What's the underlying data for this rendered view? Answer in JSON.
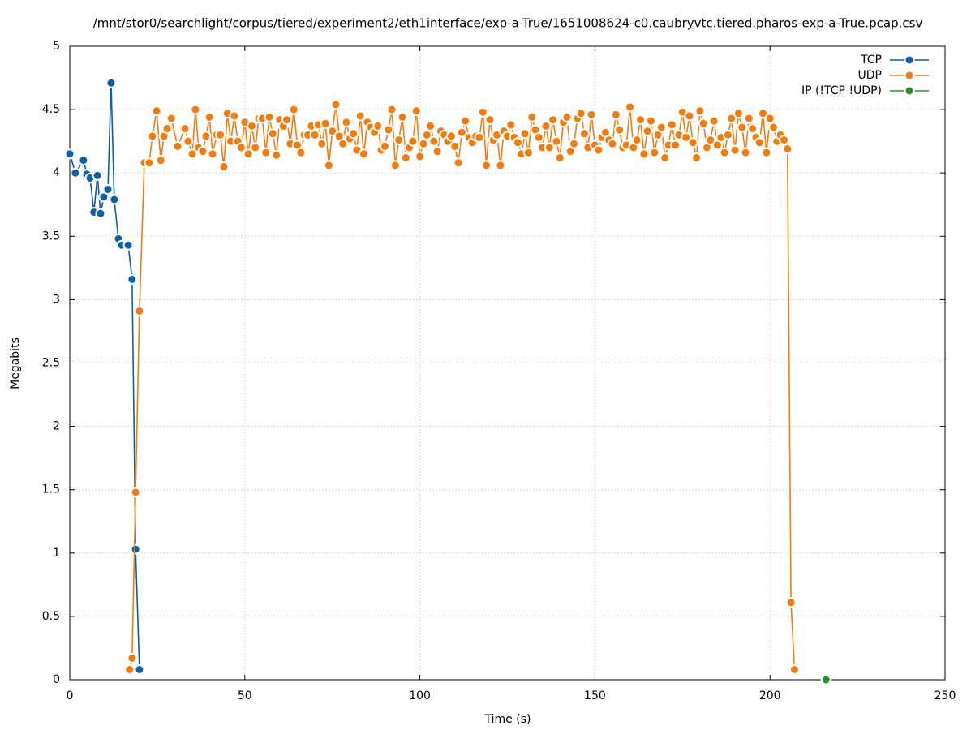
{
  "chart_data": {
    "type": "line",
    "title": "/mnt/stor0/searchlight/corpus/tiered/experiment2/eth1interface/exp-a-True/1651008624-c0.caubryvtc.tiered.pharos-exp-a-True.pcap.csv",
    "xlabel": "Time (s)",
    "ylabel": "Megabits",
    "xlim": [
      0,
      250
    ],
    "ylim": [
      0,
      5
    ],
    "xticks": [
      0,
      50,
      100,
      150,
      200,
      250
    ],
    "yticks": [
      0,
      0.5,
      1,
      1.5,
      2,
      2.5,
      3,
      3.5,
      4,
      4.5,
      5
    ],
    "grid": true,
    "legend": "top-right",
    "series": [
      {
        "name": "TCP",
        "color": "#0a5fa8",
        "x": [
          0,
          1.6,
          3.9,
          4.9,
          5.8,
          6.9,
          7.9,
          8.8,
          9.7,
          10.9,
          11.8,
          12.7,
          13.9,
          14.8,
          16.7,
          17.8,
          18.8,
          19.9
        ],
        "values": [
          4.15,
          4.0,
          4.1,
          3.99,
          3.96,
          3.69,
          3.98,
          3.68,
          3.81,
          3.87,
          4.71,
          3.79,
          3.48,
          3.43,
          3.43,
          3.16,
          1.03,
          0.08
        ]
      },
      {
        "name": "UDP",
        "color": "#f47c0f",
        "x": [
          17.1,
          17.8,
          18.8,
          19.9,
          21.3,
          22.7,
          23.6,
          24.8,
          26,
          26.9,
          27.8,
          29,
          30.8,
          32.9,
          33.8,
          35,
          35.9,
          36.8,
          38,
          38.9,
          39.9,
          40.8,
          42,
          43,
          44,
          45,
          46,
          47,
          48,
          49,
          50,
          51,
          52,
          53,
          54,
          55,
          56,
          57,
          58,
          59,
          60,
          61,
          62,
          63,
          64,
          65,
          66,
          67,
          68,
          69,
          70,
          71,
          72,
          73,
          74,
          75,
          76,
          77,
          78,
          79,
          80,
          81,
          82,
          83,
          84,
          85,
          86,
          87,
          88,
          89,
          90,
          91,
          92,
          93,
          94,
          95,
          96,
          97,
          98,
          99,
          100,
          101,
          102,
          103,
          104,
          105,
          106,
          107,
          108,
          109,
          110,
          111,
          112,
          113,
          114,
          115,
          116,
          117,
          118,
          119,
          120,
          121,
          122,
          123,
          124,
          125,
          126,
          127,
          128,
          129,
          130,
          131,
          132,
          133,
          134,
          135,
          136,
          137,
          138,
          139,
          140,
          141,
          142,
          143,
          144,
          145,
          146,
          147,
          148,
          149,
          150,
          151,
          152,
          153,
          154,
          155,
          156,
          157,
          158,
          159,
          160,
          161,
          162,
          163,
          164,
          165,
          166,
          167,
          168,
          169,
          170,
          171,
          172,
          173,
          174,
          175,
          176,
          177,
          178,
          179,
          180,
          181,
          182,
          183,
          184,
          185,
          186,
          187,
          188,
          189,
          190,
          191,
          192,
          193,
          194,
          195,
          196,
          197,
          198,
          199,
          200,
          201,
          202,
          203,
          204,
          205,
          206,
          207
        ],
        "values": [
          0.08,
          0.17,
          1.48,
          2.91,
          4.08,
          4.08,
          4.29,
          4.49,
          4.1,
          4.29,
          4.35,
          4.43,
          4.21,
          4.35,
          4.25,
          4.15,
          4.5,
          4.2,
          4.17,
          4.29,
          4.44,
          4.15,
          4.3,
          4.3,
          4.05,
          4.47,
          4.25,
          4.45,
          4.25,
          4.2,
          4.4,
          4.15,
          4.37,
          4.2,
          4.43,
          4.43,
          4.16,
          4.44,
          4.31,
          4.14,
          4.42,
          4.37,
          4.42,
          4.23,
          4.5,
          4.22,
          4.16,
          4.3,
          4.3,
          4.37,
          4.3,
          4.38,
          4.23,
          4.39,
          4.06,
          4.33,
          4.54,
          4.29,
          4.23,
          4.4,
          4.27,
          4.31,
          4.18,
          4.45,
          4.15,
          4.4,
          4.36,
          4.32,
          4.37,
          4.18,
          4.21,
          4.34,
          4.5,
          4.06,
          4.26,
          4.44,
          4.12,
          4.2,
          4.25,
          4.49,
          4.13,
          4.23,
          4.3,
          4.37,
          4.25,
          4.17,
          4.33,
          4.3,
          4.25,
          4.29,
          4.21,
          4.08,
          4.32,
          4.41,
          4.28,
          4.24,
          4.29,
          4.28,
          4.48,
          4.06,
          4.42,
          4.26,
          4.3,
          4.06,
          4.33,
          4.29,
          4.38,
          4.28,
          4.24,
          4.15,
          4.31,
          4.16,
          4.44,
          4.34,
          4.28,
          4.2,
          4.37,
          4.2,
          4.42,
          4.25,
          4.12,
          4.4,
          4.44,
          4.17,
          4.23,
          4.43,
          4.47,
          4.31,
          4.2,
          4.46,
          4.22,
          4.18,
          4.28,
          4.32,
          4.26,
          4.23,
          4.46,
          4.34,
          4.2,
          4.22,
          4.52,
          4.2,
          4.26,
          4.42,
          4.15,
          4.33,
          4.41,
          4.16,
          4.3,
          4.36,
          4.12,
          4.22,
          4.38,
          4.22,
          4.3,
          4.48,
          4.28,
          4.45,
          4.24,
          4.12,
          4.49,
          4.39,
          4.2,
          4.26,
          4.41,
          4.22,
          4.28,
          4.16,
          4.3,
          4.43,
          4.18,
          4.47,
          4.36,
          4.16,
          4.43,
          4.35,
          4.28,
          4.24,
          4.47,
          4.16,
          4.43,
          4.36,
          4.25,
          4.3,
          4.26,
          4.19,
          0.61,
          0.08
        ]
      },
      {
        "name": "IP (!TCP  !UDP)",
        "color": "#2d8f2d",
        "x": [
          216
        ],
        "values": [
          0
        ]
      }
    ]
  }
}
